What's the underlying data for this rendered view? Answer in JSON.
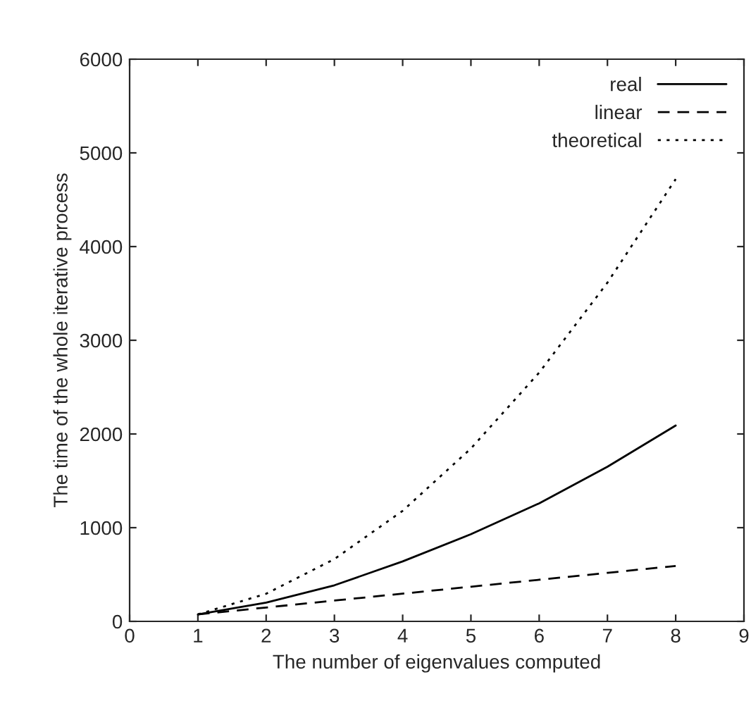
{
  "chart_data": {
    "type": "line",
    "xlabel": "The number of eigenvalues computed",
    "ylabel": "The time of the whole iterative process",
    "x": [
      1,
      2,
      3,
      4,
      5,
      6,
      7,
      8
    ],
    "series": [
      {
        "name": "real",
        "color": "#000000",
        "line_style": "solid",
        "values": [
          74,
          200,
          385,
          640,
          930,
          1260,
          1650,
          2090
        ]
      },
      {
        "name": "linear",
        "color": "#000000",
        "line_style": "dashed",
        "values": [
          74,
          148,
          222,
          296,
          370,
          444,
          518,
          592
        ]
      },
      {
        "name": "theoretical",
        "color": "#000000",
        "line_style": "dotted",
        "values": [
          74,
          295,
          665,
          1180,
          1845,
          2655,
          3615,
          4720
        ]
      }
    ],
    "xlim": [
      0,
      9
    ],
    "xticks": [
      0,
      1,
      2,
      3,
      4,
      5,
      6,
      7,
      8,
      9
    ],
    "ylim": [
      0,
      6000
    ],
    "yticks": [
      0,
      1000,
      2000,
      3000,
      4000,
      5000,
      6000
    ],
    "legend": "top right",
    "grid": false
  }
}
